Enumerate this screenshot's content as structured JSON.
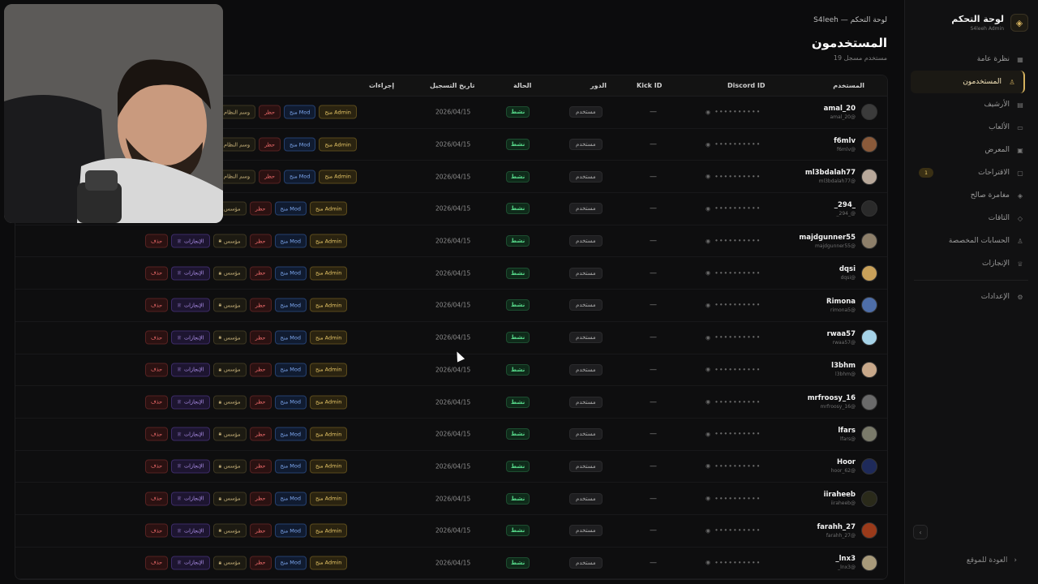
{
  "sidebar": {
    "brand_title": "لوحة التحكم",
    "brand_subtitle": "S4leeh Admin",
    "items": [
      {
        "label": "نظرة عامة",
        "icon": "grid-icon"
      },
      {
        "label": "المستخدمون",
        "icon": "user-icon",
        "active": true
      },
      {
        "label": "الأرشيف",
        "icon": "archive-icon"
      },
      {
        "label": "الألعاب",
        "icon": "gamepad-icon"
      },
      {
        "label": "المعرض",
        "icon": "image-icon"
      },
      {
        "label": "الاقتراحات",
        "icon": "message-icon",
        "badge": "1"
      },
      {
        "label": "مغامرة صالح",
        "icon": "layers-icon"
      },
      {
        "label": "التاقات",
        "icon": "tag-icon"
      },
      {
        "label": "الحسابات المخصصة",
        "icon": "users-icon"
      },
      {
        "label": "الإنجازات",
        "icon": "trophy-icon"
      }
    ],
    "settings": {
      "label": "الإعدادات",
      "icon": "gear-icon"
    },
    "back_label": "العودة للموقع"
  },
  "header": {
    "breadcrumb": "S4leeh — لوحة التحكم",
    "title": "المستخدمون",
    "count": "19 مستخدم مسجل"
  },
  "table": {
    "columns": {
      "user": "المستخدم",
      "discord": "Discord ID",
      "kick": "Kick ID",
      "role": "الدور",
      "status": "الحالة",
      "date": "تاريخ التسجيل",
      "actions": "إجراءات"
    },
    "actions": {
      "admin": "منح Admin",
      "mod": "منح Mod",
      "ban": "حظر",
      "founder": "مؤسس",
      "system_badge": "وسم النظام",
      "achievements": "الإنجازات",
      "delete": "حذف"
    },
    "masked_id": "••••••••••",
    "kick_empty": "—",
    "rows": [
      {
        "name": "amal_20",
        "handle": "amal_20@",
        "role": "مستخدم",
        "status": "نشط",
        "date": "2026/04/15",
        "avatar_color": "#3b3b3b"
      },
      {
        "name": "f6mlv",
        "handle": "f6mlv@",
        "role": "مستخدم",
        "status": "نشط",
        "date": "2026/04/15",
        "avatar_color": "#8a5a3a"
      },
      {
        "name": "ml3bdalah77",
        "handle": "ml3bdalah77@",
        "role": "مستخدم",
        "status": "نشط",
        "date": "2026/04/15",
        "avatar_color": "#b8a89a"
      },
      {
        "name": "_294_",
        "handle": "_294_@",
        "role": "مستخدم",
        "status": "نشط",
        "date": "2026/04/15",
        "avatar_color": "#2a2a2a"
      },
      {
        "name": "majdgunner55",
        "handle": "majdgunner55@",
        "role": "مستخدم",
        "status": "نشط",
        "date": "2026/04/15",
        "avatar_color": "#8d7f6a"
      },
      {
        "name": "dqsi",
        "handle": "dqsi@",
        "role": "مستخدم",
        "status": "نشط",
        "date": "2026/04/15",
        "avatar_color": "#c9a15a"
      },
      {
        "name": "Rimona",
        "handle": "rimona5@",
        "role": "مستخدم",
        "status": "نشط",
        "date": "2026/04/15",
        "avatar_color": "#4e6ea8"
      },
      {
        "name": "rwaa57",
        "handle": "rwaa57@",
        "role": "مستخدم",
        "status": "نشط",
        "date": "2026/04/15",
        "avatar_color": "#a6d3e8"
      },
      {
        "name": "l3bhm",
        "handle": "l3bhm@",
        "role": "مستخدم",
        "status": "نشط",
        "date": "2026/04/15",
        "avatar_color": "#c8a88a"
      },
      {
        "name": "mrfroosy_16",
        "handle": "mrfroosy_16@",
        "role": "مستخدم",
        "status": "نشط",
        "date": "2026/04/15",
        "avatar_color": "#6a6a6a"
      },
      {
        "name": "lfars",
        "handle": "lfars@",
        "role": "مستخدم",
        "status": "نشط",
        "date": "2026/04/15",
        "avatar_color": "#7a7a6a"
      },
      {
        "name": "Hoor",
        "handle": "hoor_62@",
        "role": "مستخدم",
        "status": "نشط",
        "date": "2026/04/15",
        "avatar_color": "#1e2a5a"
      },
      {
        "name": "iiraheeb",
        "handle": "iiraheeb@",
        "role": "مستخدم",
        "status": "نشط",
        "date": "2026/04/15",
        "avatar_color": "#2a2a1a"
      },
      {
        "name": "farahh_27",
        "handle": "farahh_27@",
        "role": "مستخدم",
        "status": "نشط",
        "date": "2026/04/15",
        "avatar_color": "#9a3a1a"
      },
      {
        "name": "_lnx3",
        "handle": "_lnx3@",
        "role": "مستخدم",
        "status": "نشط",
        "date": "2026/04/15",
        "avatar_color": "#a89a7a"
      }
    ]
  }
}
